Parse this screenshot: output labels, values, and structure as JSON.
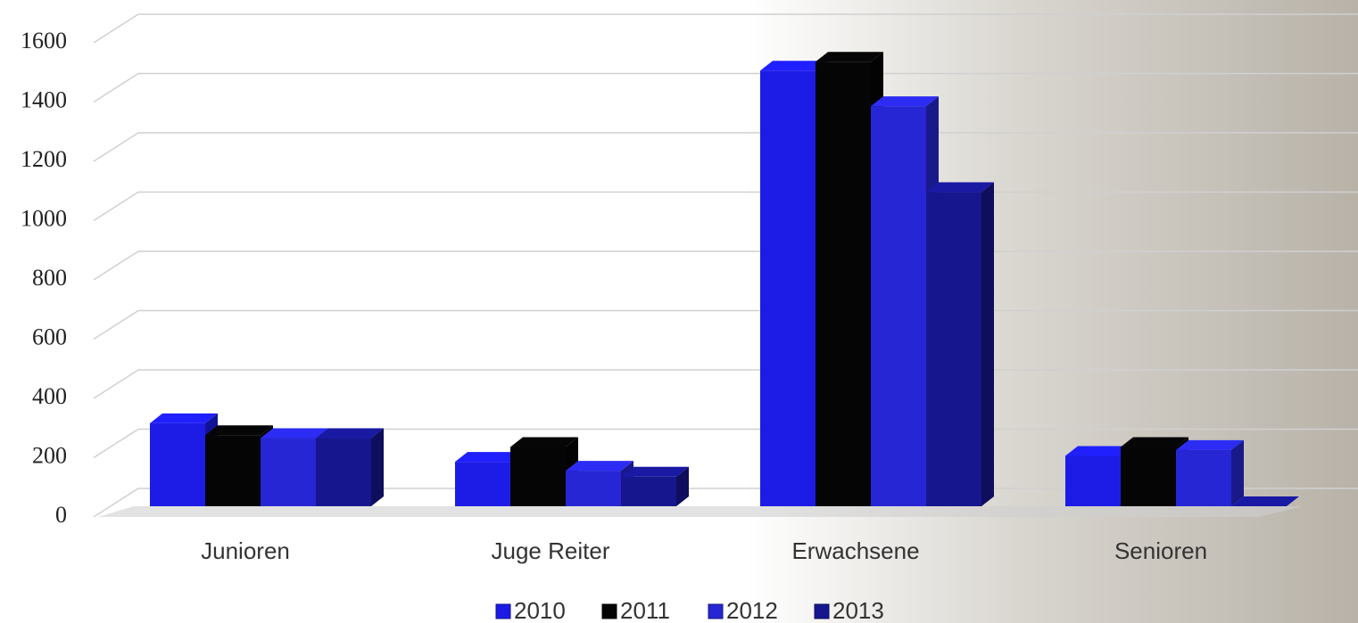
{
  "chart_data": {
    "type": "bar3d",
    "categories": [
      "Junioren",
      "Juge Reiter",
      "Erwachsene",
      "Senioren"
    ],
    "series": [
      {
        "name": "2010",
        "color": "#1c1ce6",
        "values": [
          280,
          150,
          1470,
          170
        ]
      },
      {
        "name": "2011",
        "color": "#050505",
        "values": [
          240,
          200,
          1500,
          200
        ]
      },
      {
        "name": "2012",
        "color": "#2626d4",
        "values": [
          230,
          120,
          1350,
          190
        ]
      },
      {
        "name": "2013",
        "color": "#16168f",
        "values": [
          230,
          100,
          1060,
          0
        ]
      }
    ],
    "ylim": [
      0,
      1600
    ],
    "yticks": [
      0,
      200,
      400,
      600,
      800,
      1000,
      1200,
      1400,
      1600
    ],
    "grid": true,
    "legend": "bottom"
  }
}
